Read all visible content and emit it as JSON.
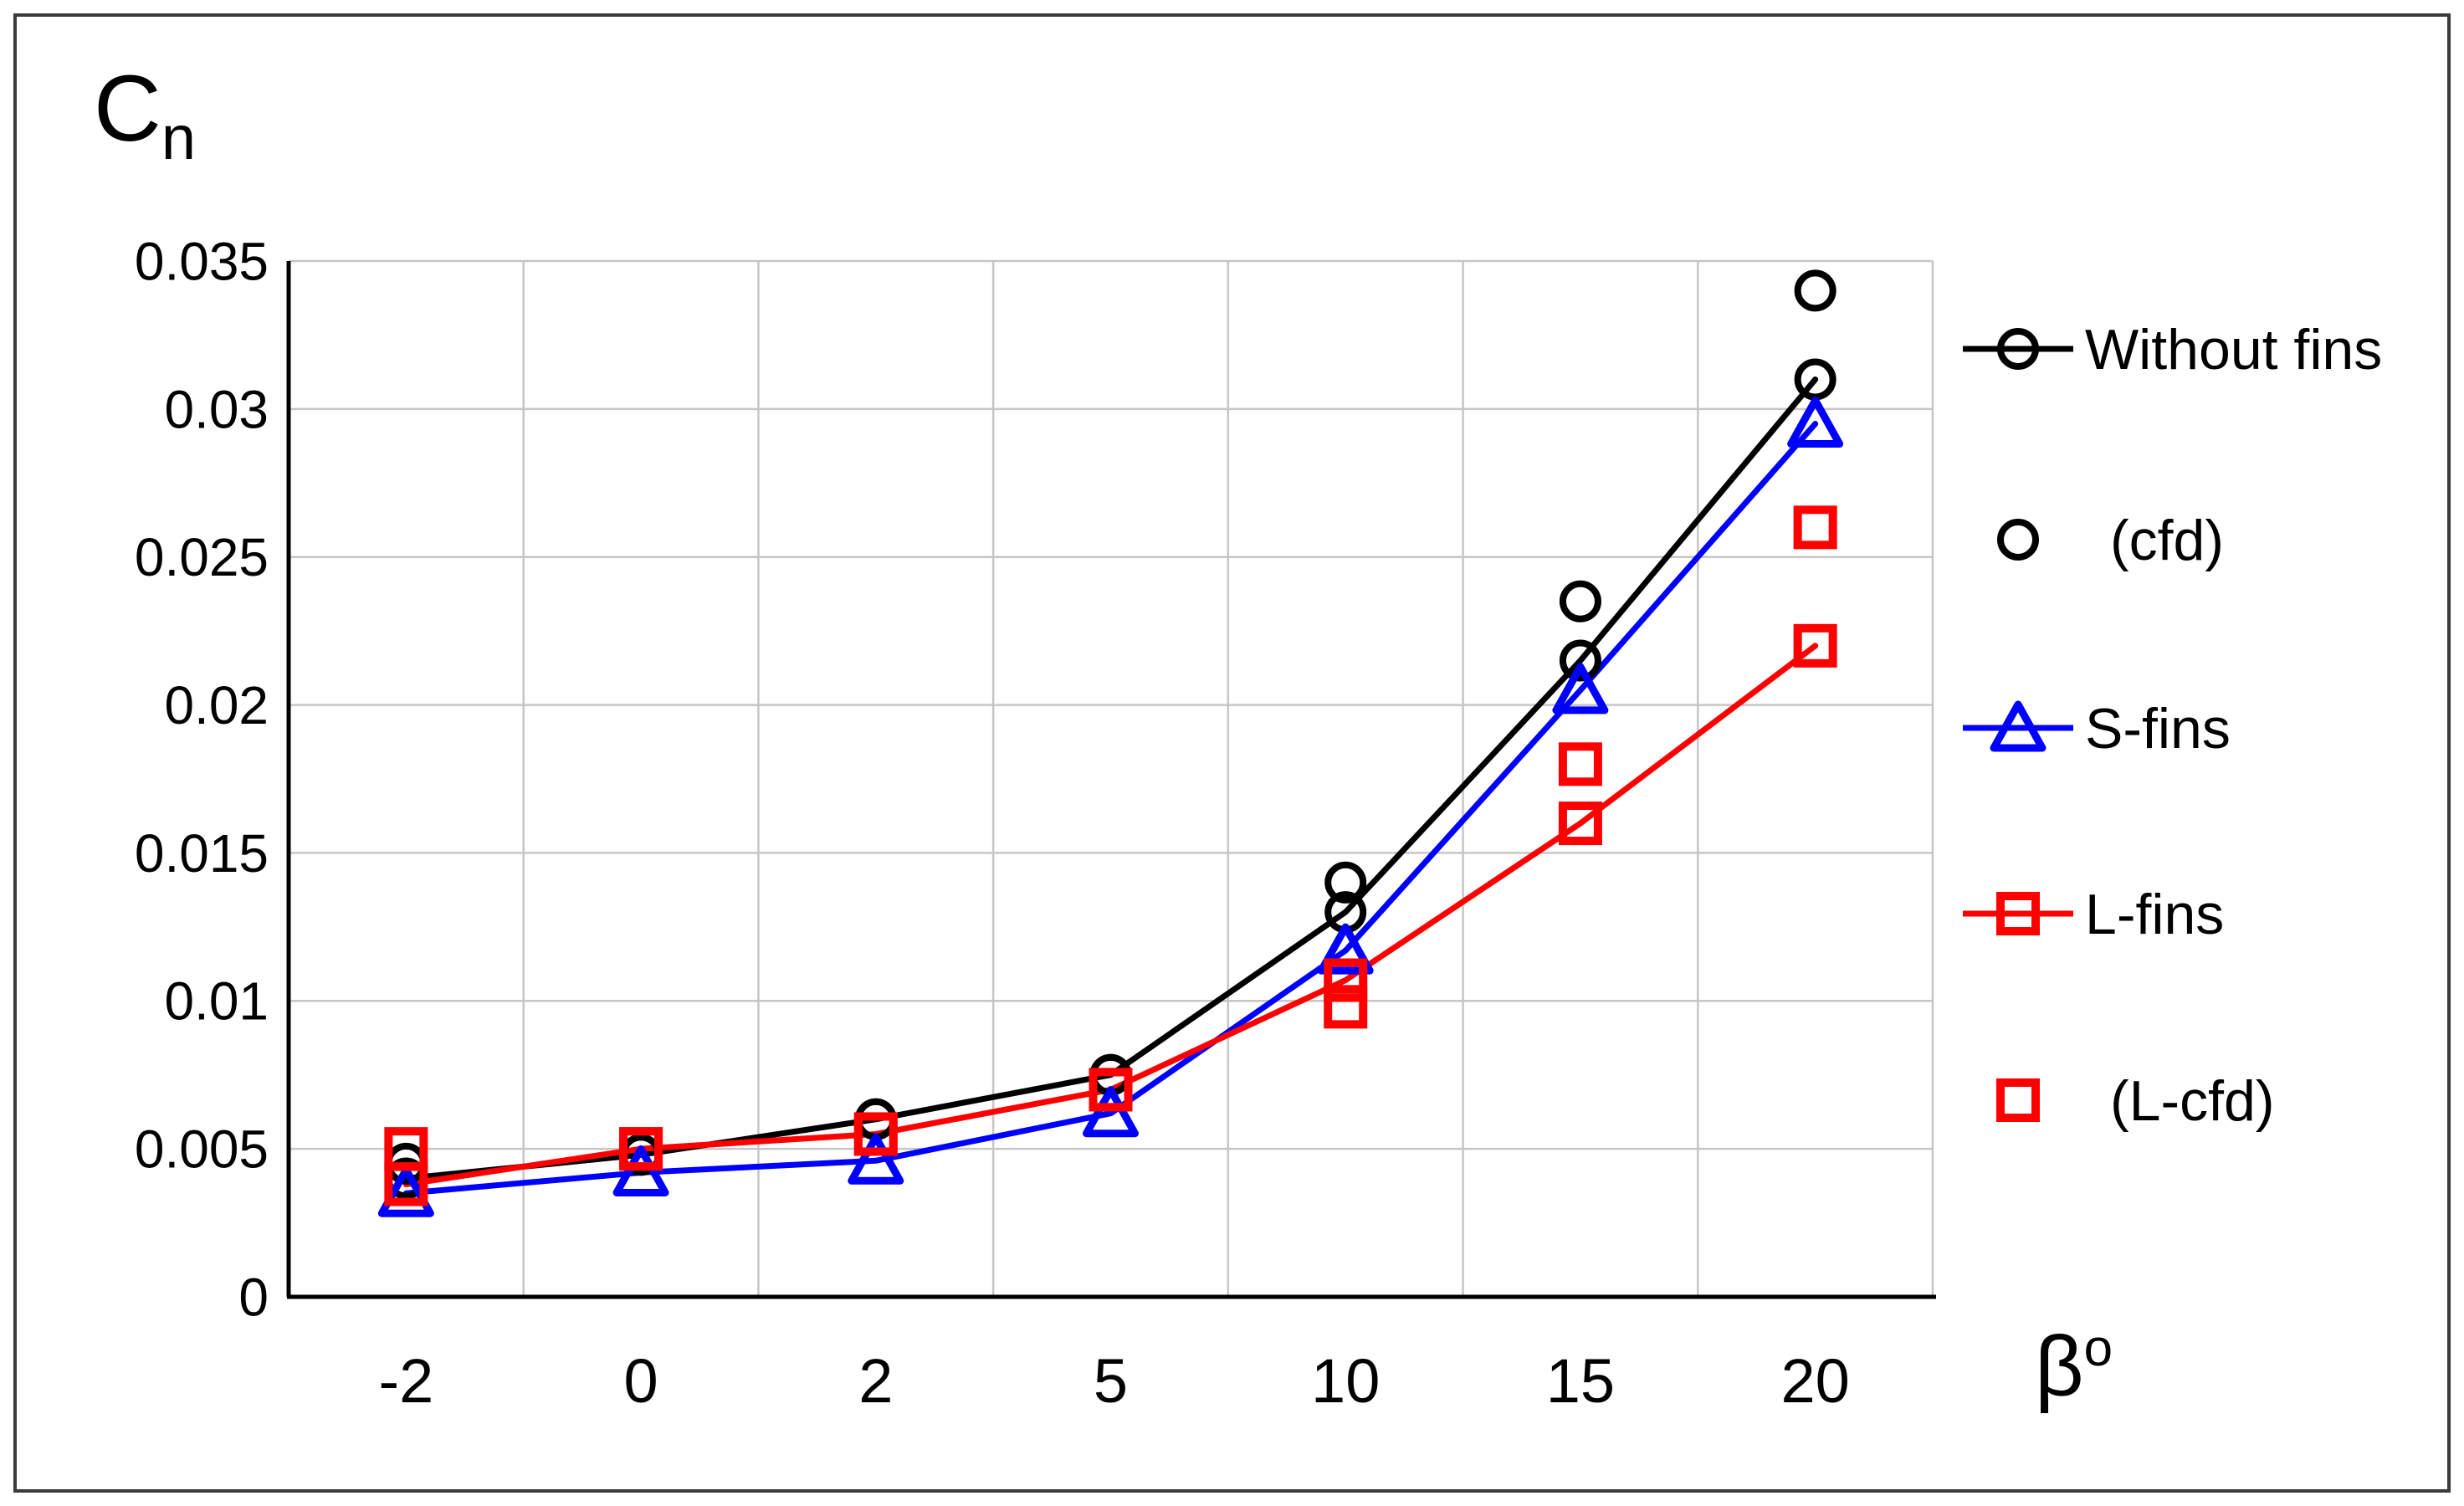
{
  "figure": {
    "y_axis_title": {
      "base": "C",
      "sub": "n"
    },
    "x_axis_title": {
      "base": "β",
      "sup": "o"
    }
  },
  "chart_data": {
    "type": "line",
    "title": "",
    "ylabel": "Cn",
    "xlabel": "β°",
    "categories": [
      -2,
      0,
      2,
      5,
      10,
      15,
      20
    ],
    "x_tick_labels": [
      "-2",
      "0",
      "2",
      "5",
      "10",
      "15",
      "20"
    ],
    "y_tick_labels": [
      "0",
      "0.005",
      "0.01",
      "0.015",
      "0.02",
      "0.025",
      "0.03",
      "0.035"
    ],
    "ylim": [
      0,
      0.035
    ],
    "y_gridline_step": 0.005,
    "grid": true,
    "legend_position": "right",
    "colors": {
      "black_series": "#000000",
      "blue_series": "#0000ff",
      "red_series": "#ff0000",
      "gridline": "#c6c6c6",
      "axis": "#000000",
      "frame_border": "#3b3b3b"
    },
    "series": [
      {
        "name": "Without fins",
        "color": "#000000",
        "marker": "circle",
        "line": true,
        "values": [
          0.004,
          0.0048,
          0.006,
          0.0075,
          0.013,
          0.0215,
          0.031
        ]
      },
      {
        "name": "(cfd)",
        "color": "#000000",
        "marker": "circle",
        "line": false,
        "values": [
          0.0045,
          0.0048,
          0.006,
          0.0075,
          0.014,
          0.0235,
          0.034
        ]
      },
      {
        "name": "S-fins",
        "color": "#0000ff",
        "marker": "triangle",
        "line": true,
        "values": [
          0.0035,
          0.0042,
          0.0046,
          0.0062,
          0.0117,
          0.0205,
          0.0295
        ]
      },
      {
        "name": "L-fins",
        "color": "#ff0000",
        "marker": "square",
        "line": true,
        "values": [
          0.0038,
          0.005,
          0.0055,
          0.007,
          0.0107,
          0.016,
          0.022
        ]
      },
      {
        "name": "(L-cfd)",
        "color": "#ff0000",
        "marker": "square",
        "line": false,
        "values": [
          0.005,
          0.005,
          0.0055,
          0.007,
          0.0098,
          0.018,
          0.026
        ]
      }
    ]
  }
}
